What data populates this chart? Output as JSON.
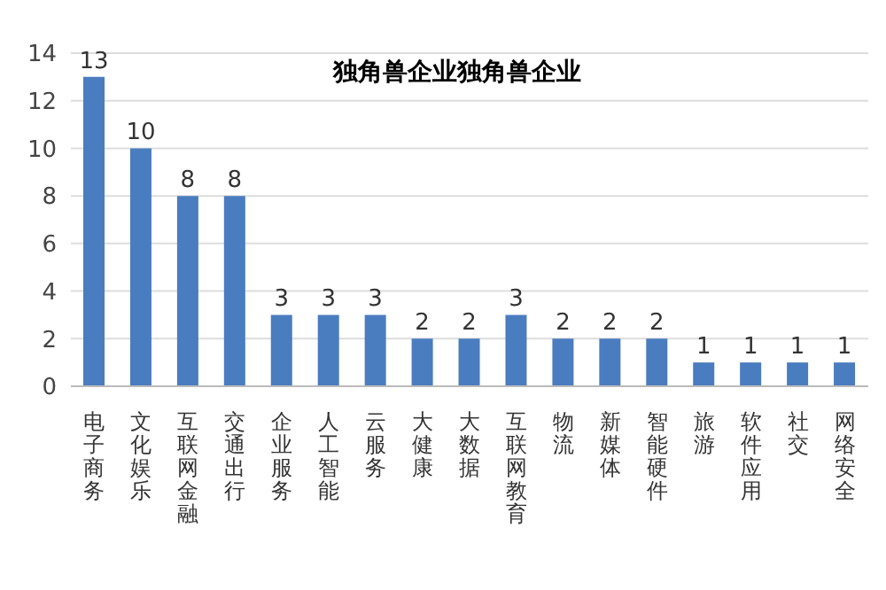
{
  "chart_data": {
    "type": "bar",
    "title": "独角兽企业独角兽企业",
    "categories": [
      "电子商务",
      "文化娱乐",
      "互联网金融",
      "交通出行",
      "企业服务",
      "人工智能",
      "云服务",
      "大健康",
      "大数据",
      "互联网教育",
      "物流",
      "新媒体",
      "智能硬件",
      "旅游",
      "软件应用",
      "社交",
      "网络安全"
    ],
    "values": [
      13,
      10,
      8,
      8,
      3,
      3,
      3,
      2,
      2,
      3,
      2,
      2,
      2,
      1,
      1,
      1,
      1
    ],
    "color": "#4a7cc0",
    "ylim": [
      0,
      14
    ],
    "yticks": [
      0,
      2,
      4,
      6,
      8,
      10,
      12,
      14
    ],
    "grid": "y",
    "data_labels": true
  }
}
